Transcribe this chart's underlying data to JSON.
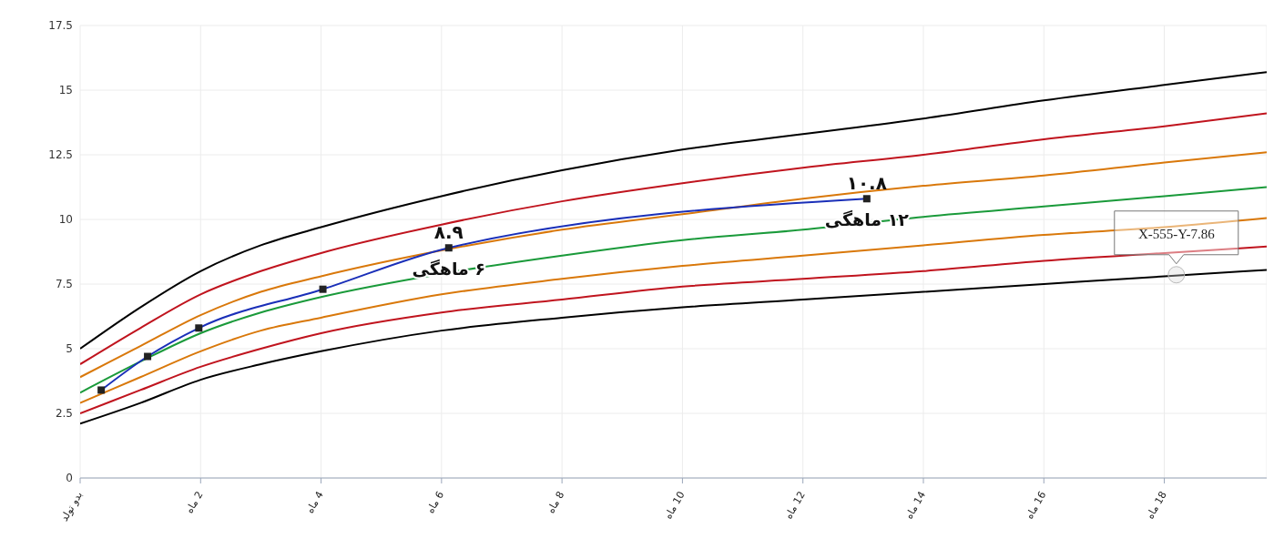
{
  "chart_data": {
    "type": "line",
    "xlim": [
      0,
      19.7
    ],
    "xticks": [
      {
        "value": 0,
        "label": "بدو تولد"
      },
      {
        "value": 2,
        "label": "2 ماه"
      },
      {
        "value": 4,
        "label": "4 ماه"
      },
      {
        "value": 6,
        "label": "6 ماه"
      },
      {
        "value": 8,
        "label": "8 ماه"
      },
      {
        "value": 10,
        "label": "10 ماه"
      },
      {
        "value": 12,
        "label": "12 ماه"
      },
      {
        "value": 14,
        "label": "14 ماه"
      },
      {
        "value": 16,
        "label": "16 ماه"
      },
      {
        "value": 18,
        "label": "18 ماه"
      }
    ],
    "ylim": [
      0,
      17.5
    ],
    "yticks": [
      0,
      2.5,
      5,
      7.5,
      10,
      12.5,
      15,
      17.5
    ],
    "grid": true,
    "legend": false,
    "line_style": "solid",
    "x": [
      0,
      1,
      2,
      3,
      4,
      6,
      8,
      10,
      12,
      14,
      16,
      18,
      19.7
    ],
    "series": [
      {
        "color": "#000000",
        "values": [
          5.0,
          6.6,
          8.0,
          9.0,
          9.7,
          10.9,
          11.9,
          12.7,
          13.3,
          13.9,
          14.6,
          15.2,
          15.7
        ]
      },
      {
        "color": "#c0141e",
        "values": [
          4.4,
          5.8,
          7.1,
          8.0,
          8.7,
          9.8,
          10.7,
          11.4,
          12.0,
          12.5,
          13.1,
          13.6,
          14.1
        ]
      },
      {
        "color": "#d9780a",
        "values": [
          3.9,
          5.1,
          6.3,
          7.2,
          7.8,
          8.8,
          9.6,
          10.2,
          10.8,
          11.3,
          11.7,
          12.2,
          12.6
        ]
      },
      {
        "color": "#1a9a3a",
        "values": [
          3.3,
          4.5,
          5.6,
          6.4,
          7.0,
          7.9,
          8.6,
          9.2,
          9.6,
          10.1,
          10.5,
          10.9,
          11.25
        ]
      },
      {
        "color": "#d9780a",
        "values": [
          2.9,
          3.9,
          4.9,
          5.7,
          6.2,
          7.1,
          7.7,
          8.2,
          8.6,
          9.0,
          9.4,
          9.7,
          10.05
        ]
      },
      {
        "color": "#c0141e",
        "values": [
          2.5,
          3.4,
          4.3,
          5.0,
          5.6,
          6.4,
          6.9,
          7.4,
          7.7,
          8.0,
          8.4,
          8.7,
          8.95
        ]
      },
      {
        "color": "#000000",
        "values": [
          2.1,
          2.9,
          3.8,
          4.4,
          4.9,
          5.7,
          6.2,
          6.6,
          6.9,
          7.2,
          7.5,
          7.8,
          8.05
        ]
      },
      {
        "color": "#1a2fb8",
        "marker": "square",
        "x": [
          0.35,
          1.12,
          1.97,
          4.03,
          6.12,
          13.06
        ],
        "values": [
          3.4,
          4.7,
          5.8,
          7.3,
          8.9,
          10.8
        ],
        "value_labels": [
          null,
          null,
          null,
          null,
          "۸.۹",
          "۱۰.۸"
        ]
      }
    ],
    "annotations": [
      {
        "text": "۶ ماهگی",
        "x": 6.12,
        "y": 8.9
      },
      {
        "text": "۱۲ ماهگی",
        "x": 13.06,
        "y": 10.8
      },
      {
        "text": "X-555-Y-7.86",
        "x": 18.2,
        "y": 7.86
      }
    ]
  }
}
